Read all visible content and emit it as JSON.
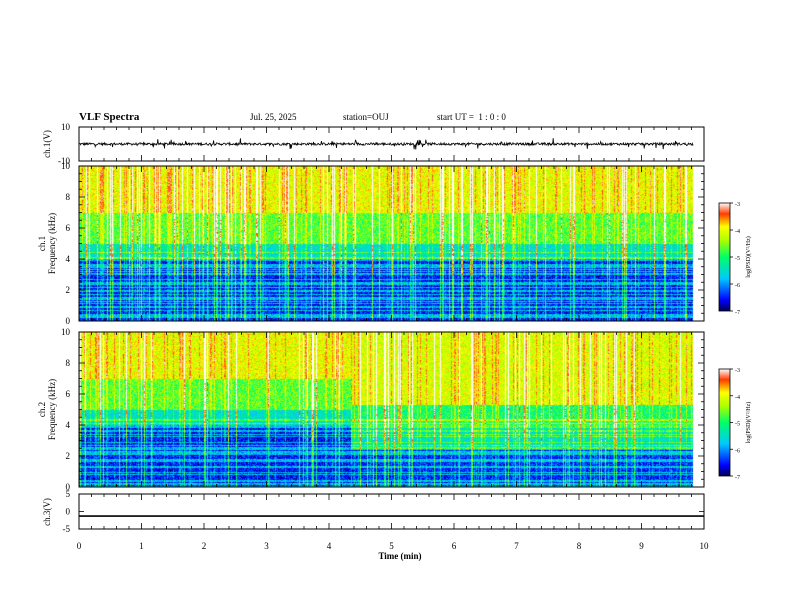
{
  "header": {
    "title": "VLF Spectra",
    "date": "Jul. 25, 2025",
    "station": "station=OUJ",
    "start": "start UT =  1 : 0 : 0"
  },
  "chart_data": [
    {
      "type": "line",
      "name": "ch1-waveform",
      "ylabel": "ch.1(V)",
      "ylim": [
        -10,
        10
      ],
      "yticks": [
        "10",
        "-10"
      ],
      "xlim": [
        0,
        10
      ],
      "baseline": 0,
      "spike_amplitude": 3
    },
    {
      "type": "heatmap",
      "name": "ch1-spectrogram",
      "ylabel": "ch.1",
      "ylabel2": "Frequency (kHz)",
      "xlim": [
        0,
        10
      ],
      "ylim": [
        0,
        10
      ],
      "yticks": [
        "0",
        "2",
        "4",
        "6",
        "8",
        "10"
      ],
      "data_end_min": 9.83,
      "colorbar": {
        "label": "log(PSD)(V²/Hz)",
        "range": [
          -7,
          -3
        ],
        "ticks": [
          "-3",
          "-4",
          "-5",
          "-6",
          "-7"
        ]
      }
    },
    {
      "type": "heatmap",
      "name": "ch2-spectrogram",
      "ylabel": "ch.2",
      "ylabel2": "Frequency (kHz)",
      "xlim": [
        0,
        10
      ],
      "ylim": [
        0,
        10
      ],
      "yticks": [
        "0",
        "2",
        "4",
        "6",
        "8",
        "10"
      ],
      "data_end_min": 9.83,
      "change_at_min": 4.35,
      "colorbar": {
        "label": "log(PSD)(V²/Hz)",
        "range": [
          -7,
          -3
        ],
        "ticks": [
          "-3",
          "-4",
          "-5",
          "-6",
          "-7"
        ]
      }
    },
    {
      "type": "line",
      "name": "ch3-waveform",
      "ylabel": "ch.3(V)",
      "ylim": [
        -5,
        5
      ],
      "yticks": [
        "5",
        "0",
        "-5"
      ],
      "xlim": [
        0,
        10
      ],
      "constant_value": -1.3
    }
  ],
  "xaxis": {
    "label": "Time (min)",
    "ticks": [
      "0",
      "1",
      "2",
      "3",
      "4",
      "5",
      "6",
      "7",
      "8",
      "9",
      "10"
    ]
  }
}
